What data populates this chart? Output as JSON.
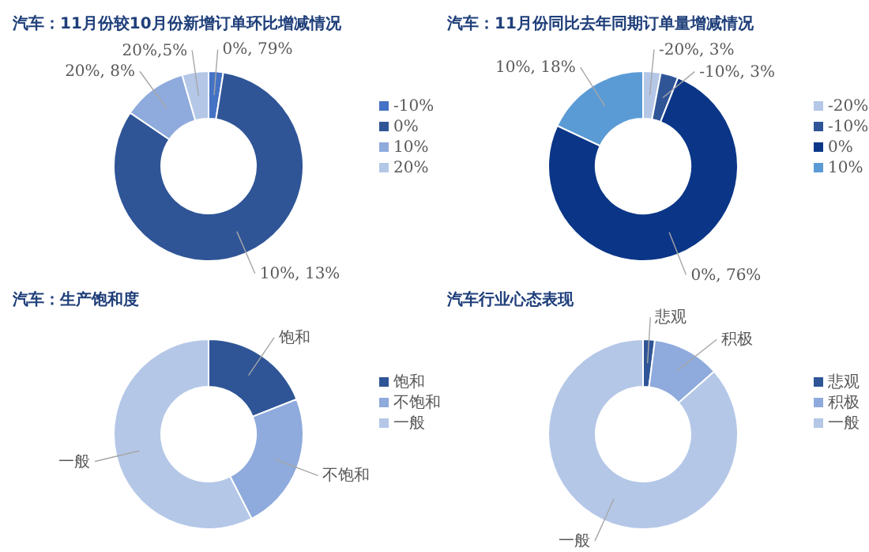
{
  "chart_data": [
    {
      "type": "donut",
      "title": "汽车：11月份较10月份新增订单环比增减情况",
      "categories": [
        "-10%",
        "0%",
        "10%",
        "20%"
      ],
      "values": [
        2.5,
        82,
        11,
        4.5
      ],
      "colors": [
        "#4472c4",
        "#2f5597",
        "#8faadc",
        "#b4c7e7"
      ],
      "annotations": [
        "0%, 79%",
        "10%, 13%",
        "20%, 8%",
        "20%,5%"
      ],
      "legend": "right"
    },
    {
      "type": "donut",
      "title": "汽车：11月份同比去年同期订单量增减情况",
      "categories": [
        "-20%",
        "-10%",
        "0%",
        "10%"
      ],
      "values": [
        3,
        3,
        76,
        18
      ],
      "colors": [
        "#b4c7e7",
        "#2f5597",
        "#0b3687",
        "#5b9bd5"
      ],
      "value_labels": [
        "-20%, 3%",
        "-10%, 3%",
        "0%, 76%",
        "10%, 18%"
      ],
      "legend": "right"
    },
    {
      "type": "donut",
      "title": "汽车：生产饱和度",
      "categories": [
        "饱和",
        "不饱和",
        "一般"
      ],
      "values": [
        19,
        23.5,
        57.5
      ],
      "colors": [
        "#2f5597",
        "#8faadc",
        "#b4c7e7"
      ],
      "value_labels": [
        "饱和",
        "不饱和",
        "一般"
      ],
      "legend": "right"
    },
    {
      "type": "donut",
      "title": "汽车行业心态表现",
      "categories": [
        "悲观",
        "积极",
        "一般"
      ],
      "values": [
        2,
        11.5,
        86.5
      ],
      "colors": [
        "#2f5597",
        "#8faadc",
        "#b4c7e7"
      ],
      "value_labels": [
        "悲观",
        "积极",
        "一般"
      ],
      "legend": "right"
    }
  ]
}
